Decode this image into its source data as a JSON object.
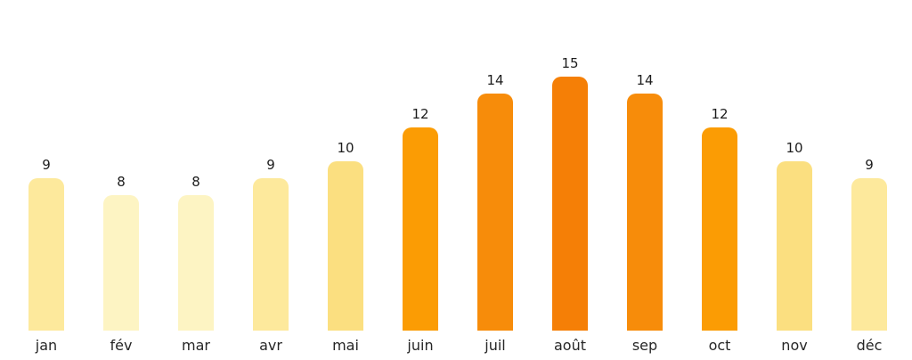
{
  "chart_data": {
    "type": "bar",
    "categories": [
      "jan",
      "fév",
      "mar",
      "avr",
      "mai",
      "juin",
      "juil",
      "août",
      "sep",
      "oct",
      "nov",
      "déc"
    ],
    "values": [
      9,
      8,
      8,
      9,
      10,
      12,
      14,
      15,
      14,
      12,
      10,
      9
    ],
    "title": "",
    "xlabel": "",
    "ylabel": "",
    "ylim": [
      0,
      17.5
    ],
    "grid": false,
    "legend": false,
    "axes_visible": false,
    "value_labels_shown": true,
    "bar_colors_by_value": {
      "8": "#FDF4C3",
      "9": "#FDE99C",
      "10": "#FBDF80",
      "12": "#FB9C04",
      "14": "#F78C0A",
      "15": "#F57F06"
    },
    "background_color": "#FFFFFF",
    "text_color": "#222222"
  }
}
